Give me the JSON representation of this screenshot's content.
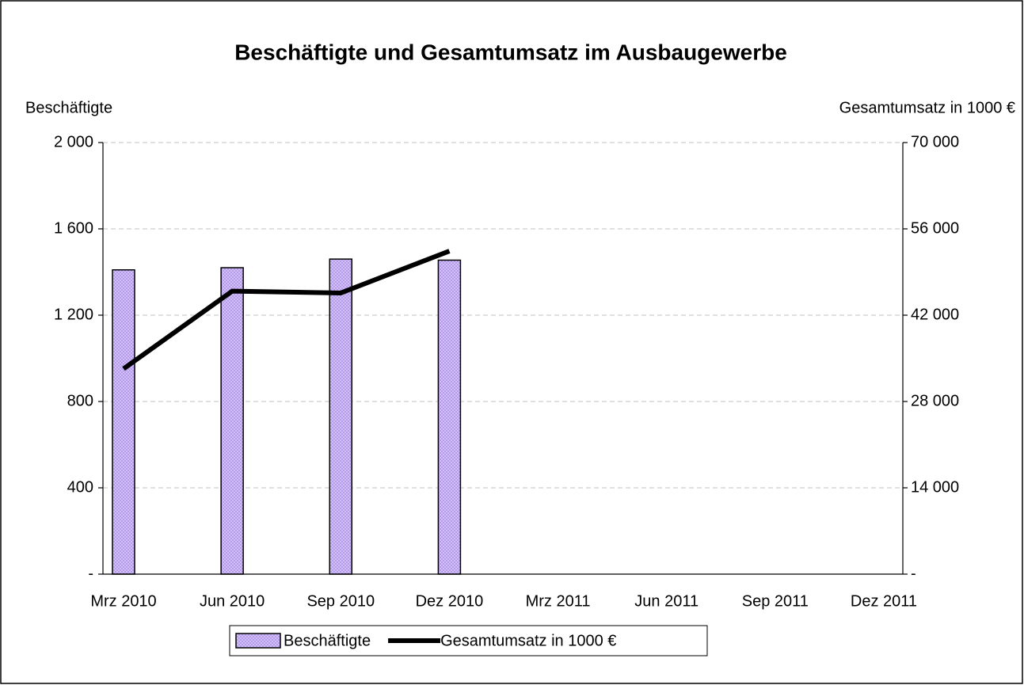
{
  "chart_data": {
    "type": "bar_line",
    "title": "Beschäftigte und Gesamtumsatz im Ausbaugewerbe",
    "y_label": "Beschäftigte",
    "y2_label": "Gesamtumsatz in 1000 €",
    "categories": [
      "Mrz 2010",
      "Jun 2010",
      "Sep 2010",
      "Dez 2010",
      "Mrz 2011",
      "Jun 2011",
      "Sep 2011",
      "Dez 2011"
    ],
    "series": [
      {
        "name": "Beschäftigte",
        "type": "bar",
        "color": "#ccb3ff",
        "values": [
          1410,
          1420,
          1460,
          1455,
          null,
          null,
          null,
          null
        ]
      },
      {
        "name": "Gesamtumsatz in 1000 €",
        "type": "line",
        "color": "#000000",
        "axis": "y2",
        "values": [
          33300,
          45900,
          45600,
          52400,
          null,
          null,
          null,
          null
        ]
      }
    ],
    "ylim": [
      0,
      2000
    ],
    "yticks": [
      {
        "value": 0,
        "label": "-"
      },
      400,
      800,
      {
        "value": 1200,
        "label": "1 200"
      },
      {
        "value": 1600,
        "label": "1 600"
      },
      {
        "value": 2000,
        "label": "2 000"
      }
    ],
    "y2lim": [
      0,
      70000
    ],
    "y2ticks": [
      {
        "value": 0,
        "label": "-"
      },
      {
        "value": 14000,
        "label": "14 000"
      },
      {
        "value": 28000,
        "label": "28 000"
      },
      {
        "value": 42000,
        "label": "42 000"
      },
      {
        "value": 56000,
        "label": "56 000"
      },
      {
        "value": 70000,
        "label": "70 000"
      }
    ],
    "grid": true,
    "legend": "bottom"
  }
}
